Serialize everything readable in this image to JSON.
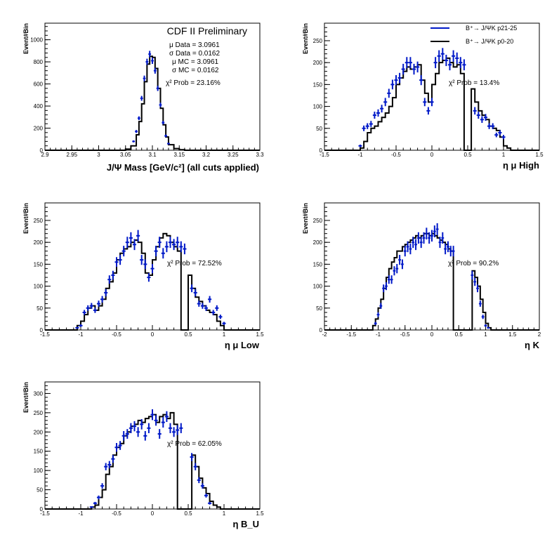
{
  "chart_data": [
    {
      "id": "mass",
      "type": "histogram",
      "xlabel": "J/Ψ Mass [GeV/c²] (all cuts applied)",
      "ylabel": "Event#Bin",
      "xlim": [
        2.9,
        3.3
      ],
      "ylim": [
        0,
        1150
      ],
      "xticks": [
        "2.9",
        "2.95",
        "3",
        "3.05",
        "3.1",
        "3.15",
        "3.2",
        "3.25",
        "3.3"
      ],
      "xtick_values": [
        2.9,
        2.95,
        3.0,
        3.05,
        3.1,
        3.15,
        3.2,
        3.25,
        3.3
      ],
      "yticks": [
        "0",
        "200",
        "400",
        "600",
        "800",
        "1000"
      ],
      "ytick_values": [
        0,
        200,
        400,
        600,
        800,
        1000
      ],
      "annotations": {
        "title": "CDF II Preliminary",
        "lines": [
          "μ Data = 3.0961",
          "σ Data =  0.0162",
          "μ MC = 3.0961",
          "σ MC =  0.0162",
          "χ² Prob = 23.16%"
        ]
      },
      "mc": {
        "x": [
          2.9,
          3.04,
          3.05,
          3.06,
          3.07,
          3.075,
          3.08,
          3.085,
          3.09,
          3.095,
          3.1,
          3.105,
          3.11,
          3.115,
          3.12,
          3.125,
          3.13,
          3.14,
          3.15,
          3.16,
          3.3
        ],
        "y": [
          0,
          0,
          10,
          40,
          140,
          260,
          420,
          620,
          780,
          850,
          840,
          740,
          560,
          380,
          230,
          120,
          50,
          15,
          5,
          0,
          0
        ]
      },
      "data": {
        "x": [
          3.065,
          3.07,
          3.075,
          3.08,
          3.085,
          3.09,
          3.095,
          3.1,
          3.105,
          3.11,
          3.115,
          3.12,
          3.125,
          3.13
        ],
        "y": [
          80,
          170,
          290,
          470,
          650,
          800,
          870,
          810,
          720,
          560,
          410,
          250,
          130,
          60
        ]
      }
    },
    {
      "id": "eta-mu-high",
      "type": "histogram",
      "xlabel": "η μ High",
      "ylabel": "Event#Bin",
      "xlim": [
        -1.5,
        1.5
      ],
      "ylim": [
        0,
        290
      ],
      "xticks": [
        "-1.5",
        "-1",
        "-0.5",
        "0",
        "0.5",
        "1",
        "1.5"
      ],
      "xtick_values": [
        -1.5,
        -1,
        -0.5,
        0,
        0.5,
        1,
        1.5
      ],
      "yticks": [
        "0",
        "50",
        "100",
        "150",
        "200",
        "250"
      ],
      "ytick_values": [
        0,
        50,
        100,
        150,
        200,
        250
      ],
      "legend": [
        "B⁺→ J/ΨK p21-25",
        "B⁺→ J/ΨK p0-20"
      ],
      "annotations": {
        "lines": [
          "χ² Prob = 13.4%"
        ]
      },
      "mc": {
        "x": [
          -1.5,
          -1.05,
          -1.0,
          -0.95,
          -0.9,
          -0.85,
          -0.8,
          -0.75,
          -0.7,
          -0.65,
          -0.6,
          -0.55,
          -0.5,
          -0.45,
          -0.4,
          -0.35,
          -0.3,
          -0.25,
          -0.2,
          -0.15,
          -0.1,
          -0.05,
          0.0,
          0.05,
          0.1,
          0.15,
          0.2,
          0.25,
          0.3,
          0.35,
          0.4,
          0.45,
          0.5,
          0.55,
          0.6,
          0.65,
          0.7,
          0.75,
          0.8,
          0.85,
          0.9,
          0.95,
          1.0,
          1.05,
          1.1,
          1.5
        ],
        "y": [
          0,
          0,
          5,
          20,
          40,
          50,
          55,
          65,
          75,
          85,
          100,
          120,
          150,
          165,
          180,
          190,
          185,
          190,
          195,
          160,
          130,
          110,
          150,
          175,
          200,
          205,
          210,
          200,
          190,
          195,
          175,
          0,
          0,
          140,
          110,
          90,
          80,
          70,
          55,
          50,
          45,
          30,
          10,
          5,
          0,
          0
        ]
      },
      "data": {
        "x": [
          -1.0,
          -0.95,
          -0.9,
          -0.85,
          -0.8,
          -0.75,
          -0.7,
          -0.65,
          -0.6,
          -0.55,
          -0.5,
          -0.45,
          -0.4,
          -0.35,
          -0.3,
          -0.25,
          -0.2,
          -0.15,
          -0.1,
          -0.05,
          0.0,
          0.05,
          0.1,
          0.15,
          0.2,
          0.25,
          0.3,
          0.35,
          0.4,
          0.45,
          0.6,
          0.65,
          0.7,
          0.75,
          0.8,
          0.85,
          0.9,
          0.95,
          1.0
        ],
        "y": [
          10,
          50,
          55,
          60,
          80,
          85,
          95,
          110,
          130,
          150,
          160,
          165,
          185,
          200,
          200,
          185,
          190,
          160,
          110,
          90,
          110,
          200,
          215,
          220,
          205,
          195,
          215,
          210,
          200,
          195,
          90,
          80,
          70,
          75,
          55,
          55,
          35,
          40,
          30
        ]
      }
    },
    {
      "id": "eta-mu-low",
      "type": "histogram",
      "xlabel": "η μ Low",
      "ylabel": "Event#Bin",
      "xlim": [
        -1.5,
        1.5
      ],
      "ylim": [
        0,
        290
      ],
      "xticks": [
        "-1.5",
        "-1",
        "-0.5",
        "0",
        "0.5",
        "1",
        "1.5"
      ],
      "xtick_values": [
        -1.5,
        -1,
        -0.5,
        0,
        0.5,
        1,
        1.5
      ],
      "yticks": [
        "0",
        "50",
        "100",
        "150",
        "200",
        "250"
      ],
      "ytick_values": [
        0,
        50,
        100,
        150,
        200,
        250
      ],
      "annotations": {
        "lines": [
          "χ² Prob = 72.52%"
        ]
      },
      "mc": {
        "x": [
          -1.5,
          -1.1,
          -1.05,
          -1.0,
          -0.95,
          -0.9,
          -0.85,
          -0.8,
          -0.75,
          -0.7,
          -0.65,
          -0.6,
          -0.55,
          -0.5,
          -0.45,
          -0.4,
          -0.35,
          -0.3,
          -0.25,
          -0.2,
          -0.15,
          -0.1,
          -0.05,
          0.0,
          0.05,
          0.1,
          0.15,
          0.2,
          0.25,
          0.3,
          0.35,
          0.4,
          0.45,
          0.5,
          0.55,
          0.6,
          0.65,
          0.7,
          0.75,
          0.8,
          0.85,
          0.9,
          0.95,
          1.0,
          1.05,
          1.5
        ],
        "y": [
          0,
          0,
          10,
          20,
          35,
          50,
          55,
          45,
          55,
          70,
          95,
          110,
          130,
          160,
          175,
          185,
          190,
          200,
          205,
          200,
          175,
          130,
          125,
          160,
          190,
          210,
          220,
          215,
          200,
          190,
          180,
          0,
          0,
          125,
          95,
          75,
          65,
          55,
          45,
          40,
          35,
          20,
          10,
          0,
          0,
          0
        ]
      },
      "data": {
        "x": [
          -1.05,
          -1.0,
          -0.95,
          -0.9,
          -0.85,
          -0.8,
          -0.75,
          -0.7,
          -0.65,
          -0.6,
          -0.55,
          -0.5,
          -0.45,
          -0.4,
          -0.35,
          -0.3,
          -0.25,
          -0.2,
          -0.15,
          -0.1,
          -0.05,
          0.0,
          0.05,
          0.1,
          0.15,
          0.2,
          0.25,
          0.3,
          0.35,
          0.4,
          0.45,
          0.55,
          0.6,
          0.65,
          0.7,
          0.75,
          0.8,
          0.85,
          0.9,
          0.95,
          1.0
        ],
        "y": [
          5,
          10,
          40,
          50,
          55,
          45,
          60,
          70,
          85,
          115,
          125,
          155,
          160,
          180,
          200,
          210,
          195,
          215,
          160,
          150,
          120,
          140,
          180,
          200,
          175,
          190,
          200,
          195,
          200,
          190,
          185,
          95,
          85,
          60,
          55,
          50,
          70,
          40,
          50,
          30,
          15
        ]
      }
    },
    {
      "id": "eta-k",
      "type": "histogram",
      "xlabel": "η K",
      "ylabel": "Event#Bin",
      "xlim": [
        -2,
        2
      ],
      "ylim": [
        0,
        290
      ],
      "xticks": [
        "-2",
        "-1.5",
        "-1",
        "-0.5",
        "0",
        "0.5",
        "1",
        "1.5",
        "2"
      ],
      "xtick_values": [
        -2,
        -1.5,
        -1,
        -0.5,
        0,
        0.5,
        1,
        1.5,
        2
      ],
      "yticks": [
        "0",
        "50",
        "100",
        "150",
        "200",
        "250"
      ],
      "ytick_values": [
        0,
        50,
        100,
        150,
        200,
        250
      ],
      "annotations": {
        "lines": [
          "χ² Prob = 90.2%"
        ]
      },
      "mc": {
        "x": [
          -2,
          -1.15,
          -1.1,
          -1.05,
          -1.0,
          -0.95,
          -0.9,
          -0.85,
          -0.8,
          -0.75,
          -0.7,
          -0.65,
          -0.6,
          -0.55,
          -0.5,
          -0.45,
          -0.4,
          -0.35,
          -0.3,
          -0.25,
          -0.2,
          -0.15,
          -0.1,
          -0.05,
          0.0,
          0.05,
          0.1,
          0.15,
          0.2,
          0.25,
          0.3,
          0.35,
          0.4,
          0.45,
          0.5,
          0.55,
          0.6,
          0.65,
          0.7,
          0.75,
          0.8,
          0.85,
          0.9,
          0.95,
          1.0,
          1.05,
          1.1,
          2
        ],
        "y": [
          0,
          0,
          10,
          25,
          50,
          70,
          95,
          120,
          140,
          155,
          165,
          180,
          180,
          190,
          195,
          200,
          205,
          210,
          215,
          210,
          215,
          220,
          220,
          215,
          220,
          215,
          210,
          205,
          200,
          195,
          185,
          180,
          0,
          0,
          0,
          0,
          0,
          0,
          0,
          135,
          120,
          100,
          70,
          40,
          15,
          5,
          0,
          0
        ]
      },
      "data": {
        "x": [
          -1.05,
          -1.0,
          -0.95,
          -0.9,
          -0.85,
          -0.8,
          -0.75,
          -0.7,
          -0.65,
          -0.6,
          -0.55,
          -0.5,
          -0.45,
          -0.4,
          -0.35,
          -0.3,
          -0.25,
          -0.2,
          -0.15,
          -0.1,
          -0.05,
          0.0,
          0.05,
          0.1,
          0.15,
          0.2,
          0.25,
          0.3,
          0.35,
          0.4,
          0.75,
          0.8,
          0.85,
          0.9,
          0.95,
          1.0,
          1.05
        ],
        "y": [
          15,
          35,
          55,
          95,
          100,
          115,
          115,
          135,
          140,
          160,
          150,
          180,
          190,
          185,
          200,
          195,
          210,
          200,
          210,
          220,
          210,
          215,
          225,
          230,
          200,
          210,
          185,
          190,
          180,
          180,
          125,
          110,
          95,
          60,
          30,
          10,
          5
        ]
      }
    },
    {
      "id": "eta-bu",
      "type": "histogram",
      "xlabel": "η B_U",
      "ylabel": "Event#Bin",
      "xlim": [
        -1.5,
        1.5
      ],
      "ylim": [
        0,
        330
      ],
      "xticks": [
        "-1.5",
        "-1",
        "-0.5",
        "0",
        "0.5",
        "1",
        "1.5"
      ],
      "xtick_values": [
        -1.5,
        -1,
        -0.5,
        0,
        0.5,
        1,
        1.5
      ],
      "yticks": [
        "0",
        "50",
        "100",
        "150",
        "200",
        "250",
        "300"
      ],
      "ytick_values": [
        0,
        50,
        100,
        150,
        200,
        250,
        300
      ],
      "annotations": {
        "lines": [
          "χ² Prob = 62.05%"
        ]
      },
      "mc": {
        "x": [
          -1.5,
          -0.9,
          -0.85,
          -0.8,
          -0.75,
          -0.7,
          -0.65,
          -0.6,
          -0.55,
          -0.5,
          -0.45,
          -0.4,
          -0.35,
          -0.3,
          -0.25,
          -0.2,
          -0.15,
          -0.1,
          -0.05,
          0.0,
          0.05,
          0.1,
          0.15,
          0.2,
          0.25,
          0.3,
          0.35,
          0.4,
          0.45,
          0.5,
          0.55,
          0.6,
          0.65,
          0.7,
          0.75,
          0.8,
          0.85,
          0.9,
          0.95,
          1.0,
          1.5
        ],
        "y": [
          0,
          0,
          5,
          10,
          30,
          50,
          90,
          110,
          140,
          160,
          170,
          190,
          200,
          215,
          220,
          230,
          225,
          235,
          240,
          245,
          225,
          240,
          245,
          235,
          250,
          220,
          0,
          0,
          0,
          0,
          140,
          110,
          80,
          55,
          40,
          20,
          10,
          5,
          0,
          0,
          0
        ]
      },
      "data": {
        "x": [
          -0.85,
          -0.8,
          -0.75,
          -0.7,
          -0.65,
          -0.6,
          -0.55,
          -0.5,
          -0.45,
          -0.4,
          -0.35,
          -0.3,
          -0.25,
          -0.2,
          -0.15,
          -0.1,
          -0.05,
          0.0,
          0.05,
          0.1,
          0.15,
          0.2,
          0.25,
          0.3,
          0.35,
          0.4,
          0.55,
          0.6,
          0.65,
          0.7,
          0.75,
          0.8
        ],
        "y": [
          5,
          15,
          30,
          60,
          110,
          115,
          130,
          160,
          165,
          190,
          195,
          210,
          215,
          200,
          220,
          190,
          210,
          245,
          230,
          195,
          225,
          240,
          210,
          200,
          205,
          210,
          135,
          110,
          75,
          60,
          35,
          15
        ]
      }
    }
  ]
}
